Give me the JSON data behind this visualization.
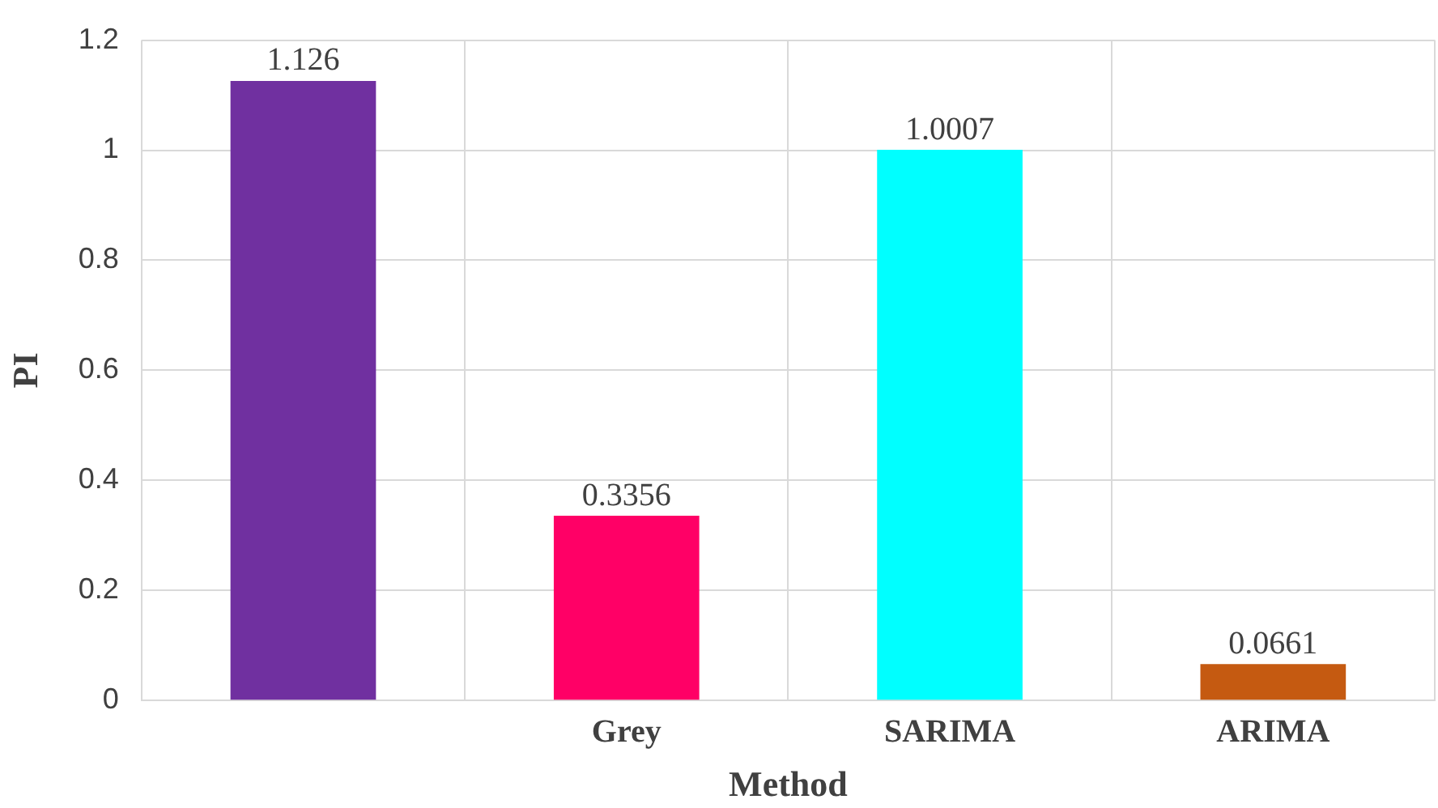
{
  "chart_data": {
    "type": "bar",
    "xlabel": "Method",
    "ylabel": "PI",
    "categories": [
      null,
      "Grey",
      "SARIMA",
      "ARIMA"
    ],
    "values": [
      1.126,
      0.3356,
      1.0007,
      0.0661
    ],
    "colors": [
      "#7030a0",
      "#ff0066",
      "#00ffff",
      "#c55a11"
    ],
    "ylim": [
      0,
      1.2
    ],
    "yticks": [
      0,
      0.2,
      0.4,
      0.6,
      0.8,
      1,
      1.2
    ],
    "grid": true,
    "data_labels": true
  }
}
